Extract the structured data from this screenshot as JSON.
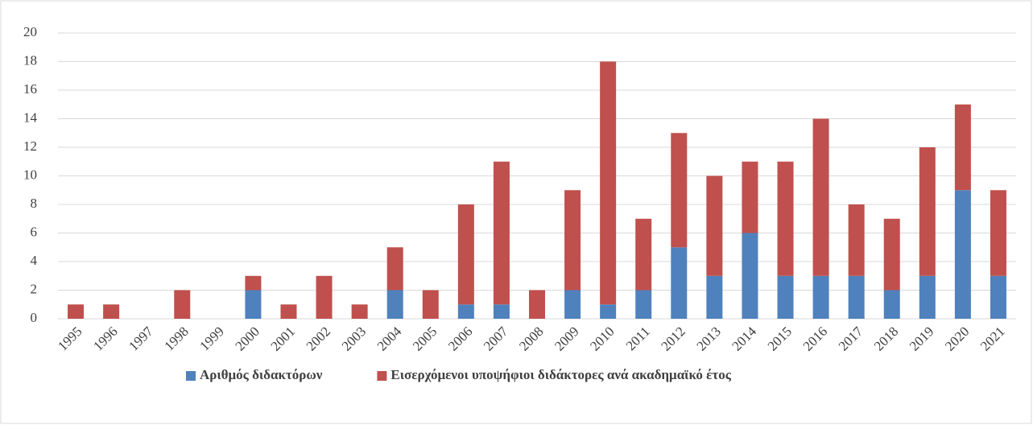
{
  "chart_data": {
    "type": "stacked_bar",
    "categories": [
      "1995",
      "1996",
      "1997",
      "1998",
      "1999",
      "2000",
      "2001",
      "2002",
      "2003",
      "2004",
      "2005",
      "2006",
      "2007",
      "2008",
      "2009",
      "2010",
      "2011",
      "2012",
      "2013",
      "2014",
      "2015",
      "2016",
      "2017",
      "2018",
      "2019",
      "2020",
      "2021"
    ],
    "series": [
      {
        "name": "Αριθμός διδακτόρων",
        "color": "#4f81bd",
        "values": [
          0,
          0,
          0,
          0,
          0,
          2,
          0,
          0,
          0,
          2,
          0,
          1,
          1,
          0,
          2,
          1,
          2,
          5,
          3,
          6,
          3,
          3,
          3,
          2,
          3,
          9,
          3
        ]
      },
      {
        "name": "Εισερχόμενοι υποψήφιοι διδάκτορες ανά ακαδημαϊκό έτος",
        "color": "#c0504d",
        "values": [
          1,
          1,
          0,
          2,
          0,
          1,
          1,
          3,
          1,
          3,
          2,
          7,
          10,
          2,
          7,
          17,
          5,
          8,
          7,
          5,
          8,
          11,
          5,
          5,
          9,
          6,
          6
        ]
      }
    ],
    "ylim": [
      0,
      20
    ],
    "yticks": [
      0,
      2,
      4,
      6,
      8,
      10,
      12,
      14,
      16,
      18,
      20
    ],
    "grid": true,
    "legend": "bottom"
  }
}
